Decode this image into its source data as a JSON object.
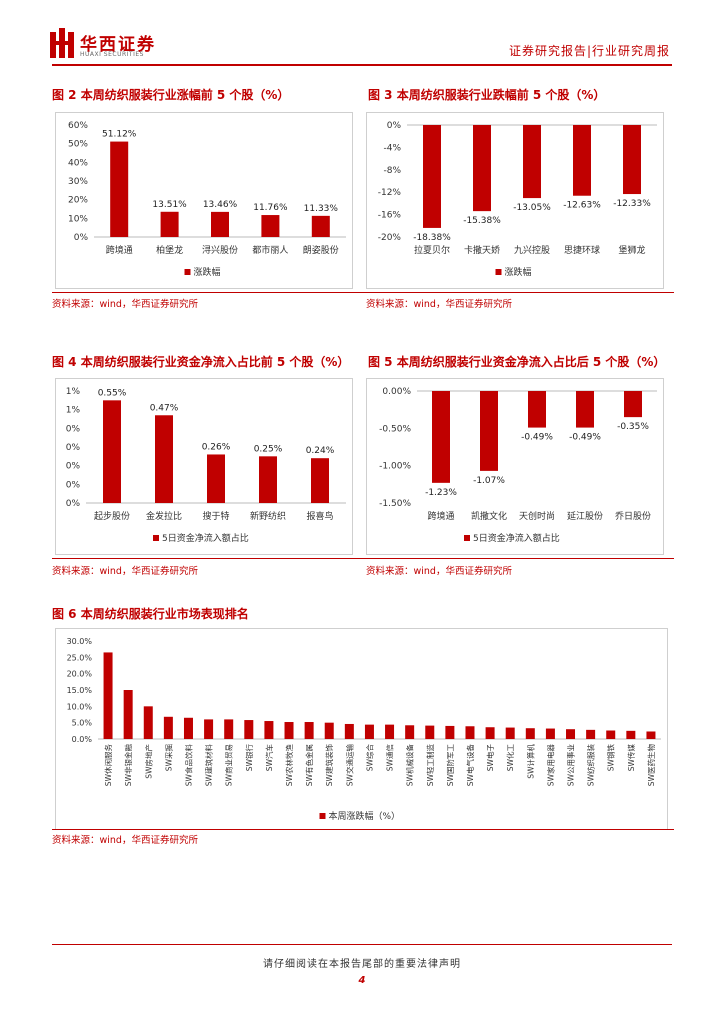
{
  "header": {
    "brand_cn": "华西证券",
    "brand_en": "HUAXI SECURITIES",
    "report_type": "证券研究报告|行业研究周报"
  },
  "colors": {
    "accent": "#c00000",
    "bar": "#c00000"
  },
  "figures": [
    {
      "title": "图 2 本周纺织服装行业涨幅前 5 个股（%）",
      "source": "资料来源：wind，华西证券研究所"
    },
    {
      "title": "图 3 本周纺织服装行业跌幅前 5 个股（%）",
      "source": "资料来源：wind，华西证券研究所"
    },
    {
      "title": "图 4 本周纺织服装行业资金净流入占比前 5 个股（%）",
      "source": "资料来源：wind，华西证券研究所"
    },
    {
      "title": "图 5 本周纺织服装行业资金净流入占比后 5 个股（%）",
      "source": "资料来源：wind，华西证券研究所"
    },
    {
      "title": "图 6 本周纺织服装行业市场表现排名",
      "source": "资料来源：wind，华西证券研究所"
    }
  ],
  "chart_data": [
    {
      "type": "bar",
      "categories": [
        "跨境通",
        "柏堡龙",
        "浔兴股份",
        "都市丽人",
        "朗姿股份"
      ],
      "series": [
        {
          "name": "涨跌幅",
          "values": [
            51.12,
            13.51,
            13.46,
            11.76,
            11.33
          ]
        }
      ],
      "data_labels": [
        "51.12%",
        "13.51%",
        "13.46%",
        "11.76%",
        "11.33%"
      ],
      "ylim": [
        0,
        60
      ],
      "yticks": [
        "0%",
        "10%",
        "20%",
        "30%",
        "40%",
        "50%",
        "60%"
      ],
      "legend": "bottom"
    },
    {
      "type": "bar",
      "categories": [
        "拉夏贝尔",
        "卡撒天娇",
        "九兴控股",
        "思捷环球",
        "堡狮龙"
      ],
      "series": [
        {
          "name": "涨跌幅",
          "values": [
            -18.38,
            -15.38,
            -13.05,
            -12.63,
            -12.33
          ]
        }
      ],
      "data_labels": [
        "-18.38%",
        "-15.38%",
        "-13.05%",
        "-12.63%",
        "-12.33%"
      ],
      "ylim": [
        -20,
        0
      ],
      "yticks": [
        "0%",
        "-4%",
        "-8%",
        "-12%",
        "-16%",
        "-20%"
      ],
      "legend": "bottom"
    },
    {
      "type": "bar",
      "categories": [
        "起步股份",
        "金发拉比",
        "搜于特",
        "新野纺织",
        "报喜鸟"
      ],
      "series": [
        {
          "name": "5日资金净流入额占比",
          "values": [
            0.55,
            0.47,
            0.26,
            0.25,
            0.24
          ]
        }
      ],
      "data_labels": [
        "0.55%",
        "0.47%",
        "0.26%",
        "0.25%",
        "0.24%"
      ],
      "ylim": [
        0,
        0.6
      ],
      "yticks": [
        "0%",
        "0%",
        "0%",
        "0%",
        "0%",
        "1%",
        "1%"
      ],
      "legend": "bottom"
    },
    {
      "type": "bar",
      "categories": [
        "跨境通",
        "凯撒文化",
        "天创时尚",
        "延江股份",
        "乔日股份"
      ],
      "series": [
        {
          "name": "5日资金净流入额占比",
          "values": [
            -1.23,
            -1.07,
            -0.49,
            -0.49,
            -0.35
          ]
        }
      ],
      "data_labels": [
        "-1.23%",
        "-1.07%",
        "-0.49%",
        "-0.49%",
        "-0.35%"
      ],
      "ylim": [
        -1.5,
        0
      ],
      "yticks": [
        "0.00%",
        "-0.50%",
        "-1.00%",
        "-1.50%"
      ],
      "legend": "bottom"
    },
    {
      "type": "bar",
      "categories": [
        "SW休闲服务",
        "SW非银金融",
        "SW房地产",
        "SW采掘",
        "SW食品饮料",
        "SW建筑材料",
        "SW商业贸易",
        "SW银行",
        "SW汽车",
        "SW农林牧渔",
        "SW有色金属",
        "SW建筑装饰",
        "SW交通运输",
        "SW综合",
        "SW通信",
        "SW机械设备",
        "SW轻工制造",
        "SW国防军工",
        "SW电气设备",
        "SW电子",
        "SW化工",
        "SW计算机",
        "SW家用电器",
        "SW公用事业",
        "SW纺织服装",
        "SW钢铁",
        "SW传媒",
        "SW医药生物"
      ],
      "series": [
        {
          "name": "本周涨跌幅（%）",
          "values": [
            26.5,
            15.0,
            10.0,
            6.8,
            6.5,
            6.0,
            6.0,
            5.8,
            5.5,
            5.2,
            5.2,
            5.0,
            4.6,
            4.4,
            4.4,
            4.2,
            4.1,
            4.0,
            3.9,
            3.6,
            3.5,
            3.3,
            3.2,
            3.0,
            2.8,
            2.6,
            2.5,
            2.3
          ]
        }
      ],
      "ylim": [
        0,
        30
      ],
      "yticks": [
        "0.0%",
        "5.0%",
        "10.0%",
        "15.0%",
        "20.0%",
        "25.0%",
        "30.0%"
      ],
      "legend": "bottom"
    }
  ],
  "footer": {
    "disclaimer": "请仔细阅读在本报告尾部的重要法律声明",
    "page": "4"
  }
}
